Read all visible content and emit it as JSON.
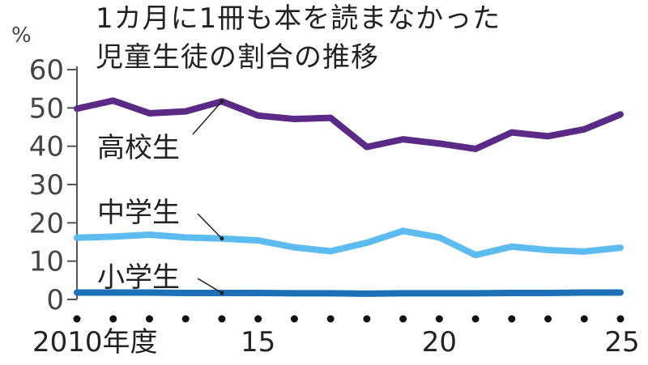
{
  "chart_data": {
    "type": "line",
    "title": [
      "1カ月に1冊も本を読まなかった",
      "児童生徒の割合の推移"
    ],
    "yunit": "%",
    "ylim": [
      0,
      60
    ],
    "yticks": [
      "0",
      "10",
      "20",
      "30",
      "40",
      "50",
      "60"
    ],
    "x": [
      2010,
      2011,
      2012,
      2013,
      2014,
      2015,
      2016,
      2017,
      2018,
      2019,
      2020,
      2021,
      2022,
      2023,
      2024,
      2025
    ],
    "xtick_labels": [
      {
        "x": 2010,
        "label": "2010年度"
      },
      {
        "x": 2015,
        "label": "15"
      },
      {
        "x": 2020,
        "label": "20"
      },
      {
        "x": 2025,
        "label": "25"
      }
    ],
    "series": [
      {
        "name": "高校生",
        "color": "#5b2a86",
        "values": [
          49.8,
          51.9,
          48.6,
          49.1,
          51.7,
          48.0,
          47.1,
          47.4,
          39.8,
          41.8,
          40.7,
          39.3,
          43.6,
          42.6,
          44.4,
          48.3
        ]
      },
      {
        "name": "中学生",
        "color": "#5cbcf0",
        "values": [
          16.1,
          16.4,
          16.9,
          16.2,
          15.9,
          15.4,
          13.6,
          12.6,
          14.8,
          17.9,
          16.2,
          11.6,
          13.8,
          12.9,
          12.5,
          13.5
        ]
      },
      {
        "name": "小学生",
        "color": "#1d6fb8",
        "values": [
          1.8,
          1.8,
          1.8,
          1.7,
          1.7,
          1.7,
          1.6,
          1.6,
          1.5,
          1.6,
          1.6,
          1.6,
          1.7,
          1.7,
          1.8,
          1.8
        ]
      }
    ],
    "grid": false
  }
}
